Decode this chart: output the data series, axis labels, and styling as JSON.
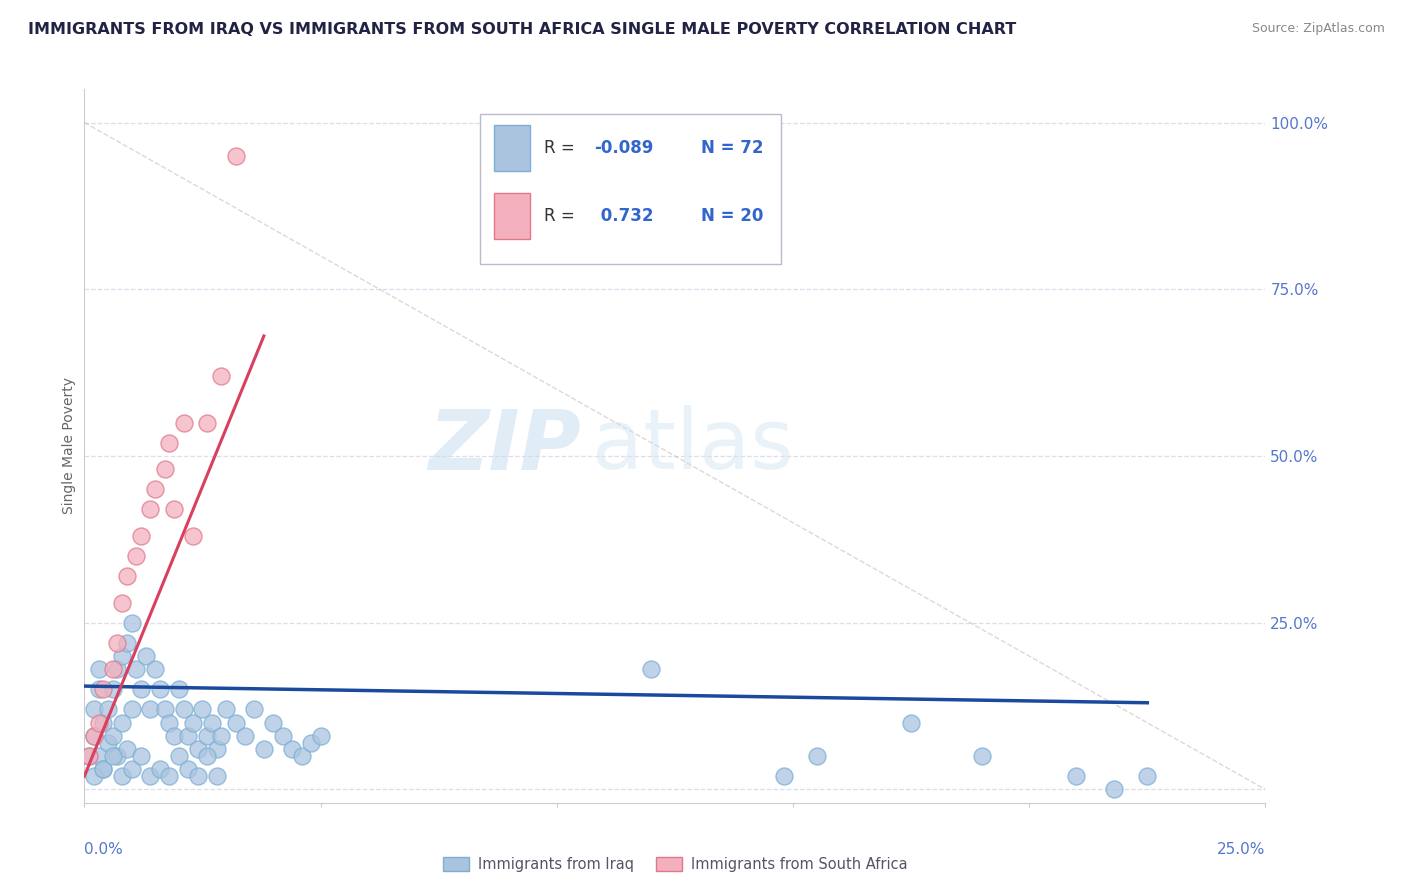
{
  "title": "IMMIGRANTS FROM IRAQ VS IMMIGRANTS FROM SOUTH AFRICA SINGLE MALE POVERTY CORRELATION CHART",
  "source": "Source: ZipAtlas.com",
  "ylabel": "Single Male Poverty",
  "yticks": [
    0.0,
    0.25,
    0.5,
    0.75,
    1.0
  ],
  "ytick_labels": [
    "",
    "25.0%",
    "50.0%",
    "75.0%",
    "100.0%"
  ],
  "xmin": 0.0,
  "xmax": 0.25,
  "ymin": -0.02,
  "ymax": 1.05,
  "iraq_R": -0.089,
  "iraq_N": 72,
  "sa_R": 0.732,
  "sa_N": 20,
  "iraq_color": "#aac4e0",
  "iraq_edge": "#7bafd4",
  "sa_color": "#f4b0be",
  "sa_edge": "#e07888",
  "iraq_line_color": "#1a4a9e",
  "sa_line_color": "#d94060",
  "diag_line_color": "#ccbbbb",
  "watermark_zip": "ZIP",
  "watermark_atlas": "atlas",
  "background_color": "#ffffff",
  "grid_color": "#ddddee",
  "title_color": "#222244",
  "axis_label_color": "#5577cc",
  "legend_R_color": "#3366cc",
  "iraq_x": [
    0.001,
    0.002,
    0.002,
    0.003,
    0.003,
    0.003,
    0.004,
    0.004,
    0.005,
    0.005,
    0.006,
    0.006,
    0.007,
    0.007,
    0.008,
    0.008,
    0.009,
    0.009,
    0.01,
    0.01,
    0.011,
    0.012,
    0.013,
    0.014,
    0.015,
    0.016,
    0.017,
    0.018,
    0.019,
    0.02,
    0.021,
    0.022,
    0.023,
    0.024,
    0.025,
    0.026,
    0.027,
    0.028,
    0.029,
    0.03,
    0.032,
    0.034,
    0.036,
    0.038,
    0.04,
    0.042,
    0.044,
    0.046,
    0.048,
    0.05,
    0.002,
    0.004,
    0.006,
    0.008,
    0.01,
    0.012,
    0.014,
    0.016,
    0.018,
    0.02,
    0.022,
    0.024,
    0.026,
    0.028,
    0.12,
    0.148,
    0.155,
    0.175,
    0.19,
    0.21,
    0.218,
    0.225
  ],
  "iraq_y": [
    0.05,
    0.08,
    0.12,
    0.15,
    0.18,
    0.05,
    0.1,
    0.03,
    0.12,
    0.07,
    0.15,
    0.08,
    0.18,
    0.05,
    0.2,
    0.1,
    0.22,
    0.06,
    0.25,
    0.12,
    0.18,
    0.15,
    0.2,
    0.12,
    0.18,
    0.15,
    0.12,
    0.1,
    0.08,
    0.15,
    0.12,
    0.08,
    0.1,
    0.06,
    0.12,
    0.08,
    0.1,
    0.06,
    0.08,
    0.12,
    0.1,
    0.08,
    0.12,
    0.06,
    0.1,
    0.08,
    0.06,
    0.05,
    0.07,
    0.08,
    0.02,
    0.03,
    0.05,
    0.02,
    0.03,
    0.05,
    0.02,
    0.03,
    0.02,
    0.05,
    0.03,
    0.02,
    0.05,
    0.02,
    0.18,
    0.02,
    0.05,
    0.1,
    0.05,
    0.02,
    0.0,
    0.02
  ],
  "sa_x": [
    0.001,
    0.002,
    0.003,
    0.004,
    0.006,
    0.007,
    0.008,
    0.009,
    0.011,
    0.012,
    0.014,
    0.015,
    0.017,
    0.018,
    0.019,
    0.021,
    0.023,
    0.026,
    0.029,
    0.032
  ],
  "sa_y": [
    0.05,
    0.08,
    0.1,
    0.15,
    0.18,
    0.22,
    0.28,
    0.32,
    0.35,
    0.38,
    0.42,
    0.45,
    0.48,
    0.52,
    0.42,
    0.55,
    0.38,
    0.55,
    0.62,
    0.95
  ],
  "iraq_trend_x0": 0.0,
  "iraq_trend_x1": 0.225,
  "iraq_trend_y0": 0.155,
  "iraq_trend_y1": 0.13,
  "sa_trend_x0": 0.0,
  "sa_trend_x1": 0.038,
  "sa_trend_y0": 0.02,
  "sa_trend_y1": 0.68
}
